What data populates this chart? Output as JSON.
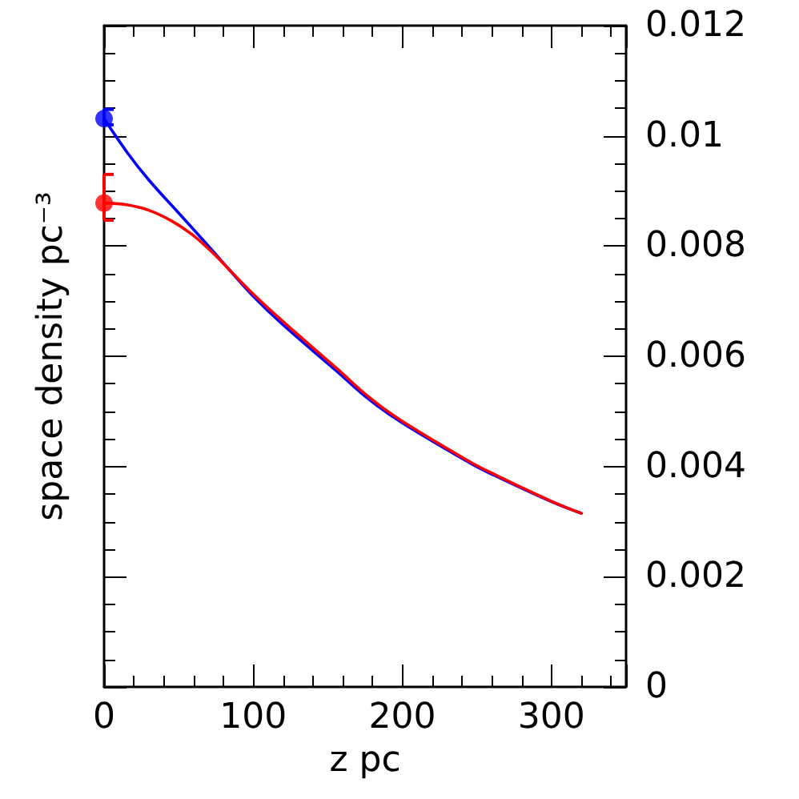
{
  "chart_data": {
    "type": "line",
    "xlabel": "z pc",
    "ylabel": "space density pc⁻³",
    "xlim": [
      0,
      350
    ],
    "xticks": [
      0,
      100,
      200,
      300
    ],
    "ylim": [
      0,
      0.012
    ],
    "yticks": [
      0,
      0.002,
      0.004,
      0.006,
      0.008,
      0.01,
      0.012
    ],
    "marker": "none",
    "line_style": "solid",
    "series": [
      {
        "color": "#0000ff",
        "x": [
          0,
          16,
          30,
          50,
          70,
          84,
          100,
          120,
          156,
          178,
          200,
          245,
          260,
          300,
          320
        ],
        "values": [
          0.01031,
          0.00968,
          0.0092,
          0.0086,
          0.008,
          0.00757,
          0.00709,
          0.00657,
          0.00573,
          0.00521,
          0.00479,
          0.00407,
          0.00386,
          0.00336,
          0.00315
        ]
      },
      {
        "color": "#ff0000",
        "x": [
          0,
          15,
          30,
          45,
          59,
          72,
          84,
          100,
          120,
          156,
          178,
          200,
          245,
          260,
          300,
          320
        ],
        "values": [
          0.00878,
          0.00875,
          0.00865,
          0.00846,
          0.00821,
          0.0079,
          0.00757,
          0.00713,
          0.00663,
          0.00578,
          0.00525,
          0.00482,
          0.00409,
          0.00388,
          0.00337,
          0.00315
        ]
      },
      {
        "type": "scatter",
        "marker": "circle",
        "color": "#0000ff",
        "x": [
          0
        ],
        "values": [
          0.01031
        ],
        "errors": [
          [
            0.0102,
            0.01048
          ]
        ]
      },
      {
        "type": "scatter",
        "marker": "circle",
        "color": "#ff0000",
        "x": [
          0
        ],
        "values": [
          0.00878
        ],
        "errors": [
          [
            0.00847,
            0.0093
          ]
        ]
      }
    ]
  }
}
